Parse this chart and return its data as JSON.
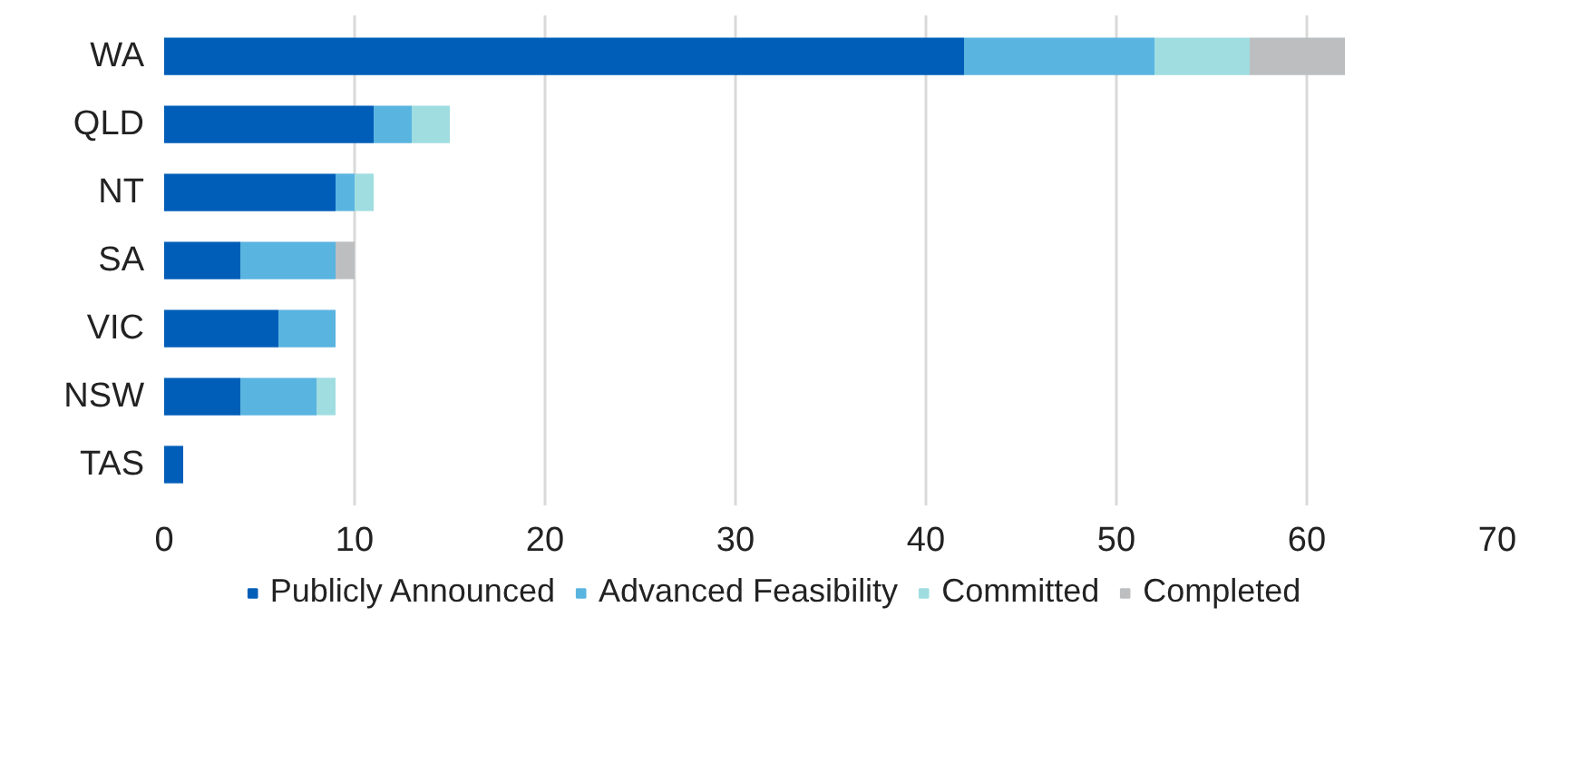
{
  "chart_data": {
    "type": "bar",
    "orientation": "horizontal",
    "stacked": true,
    "categories": [
      "WA",
      "QLD",
      "NT",
      "SA",
      "VIC",
      "NSW",
      "TAS"
    ],
    "series": [
      {
        "name": "Publicly Announced",
        "color": "#005eb8",
        "values": [
          42,
          11,
          9,
          4,
          6,
          4,
          1
        ]
      },
      {
        "name": "Advanced Feasibility",
        "color": "#5ab4e0",
        "values": [
          10,
          2,
          1,
          5,
          3,
          4,
          0
        ]
      },
      {
        "name": "Committed",
        "color": "#a0dde0",
        "values": [
          5,
          2,
          1,
          0,
          0,
          1,
          0
        ]
      },
      {
        "name": "Completed",
        "color": "#bcbec0",
        "values": [
          5,
          0,
          0,
          1,
          0,
          0,
          0
        ]
      }
    ],
    "xlim": [
      0,
      70
    ],
    "xticks": [
      0,
      10,
      20,
      30,
      40,
      50,
      60,
      70
    ],
    "grid": "x",
    "legend": "bottom"
  }
}
